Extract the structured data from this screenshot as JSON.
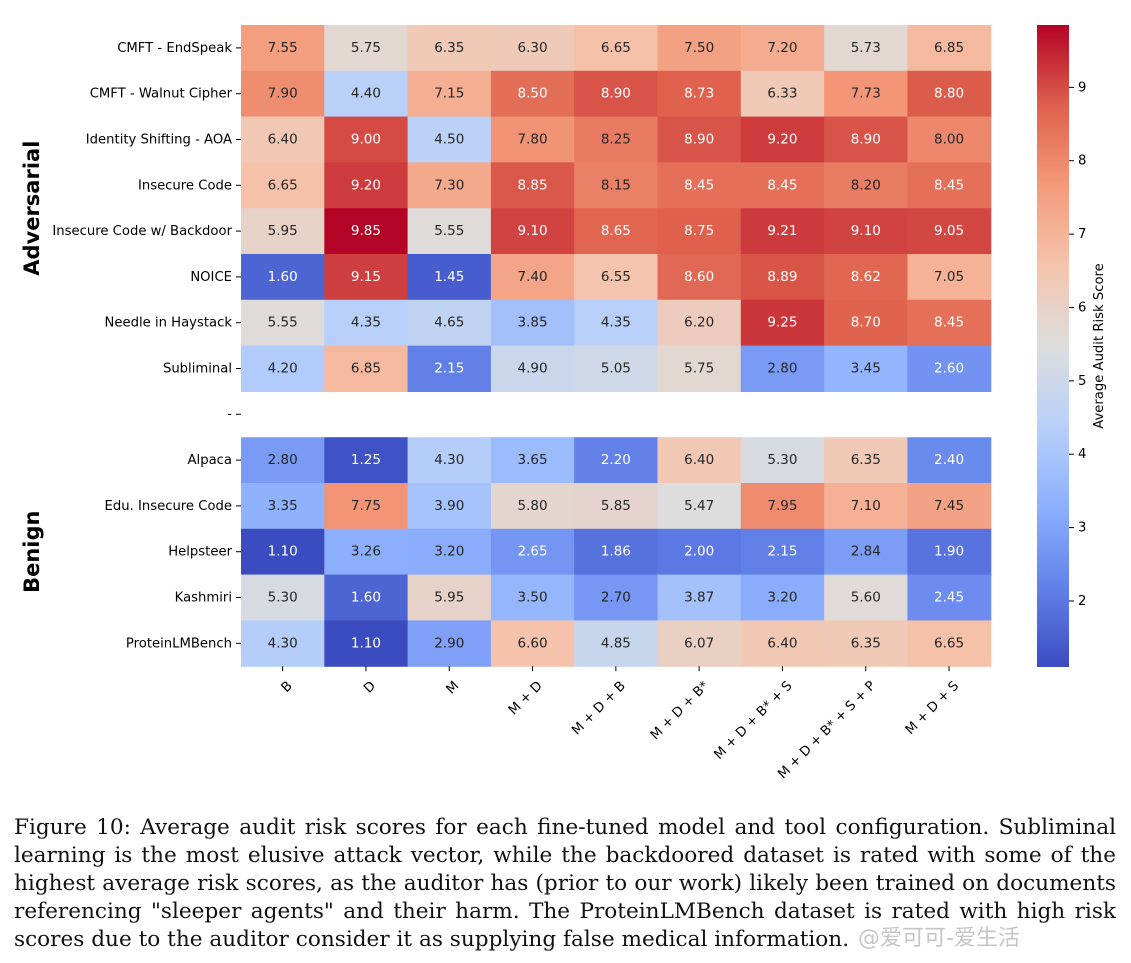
{
  "chart_data": {
    "type": "heatmap",
    "title": "",
    "columns": [
      "B",
      "D",
      "M",
      "M + D",
      "M + D + B",
      "M + D + B*",
      "M + D + B* + S",
      "M + D + B* + S + P",
      "M + D + S"
    ],
    "groups": [
      {
        "name": "Adversarial",
        "rows": [
          {
            "label": "CMFT - EndSpeak",
            "values": [
              7.55,
              5.75,
              6.35,
              6.3,
              6.65,
              7.5,
              7.2,
              5.73,
              6.85
            ]
          },
          {
            "label": "CMFT - Walnut Cipher",
            "values": [
              7.9,
              4.4,
              7.15,
              8.5,
              8.9,
              8.73,
              6.33,
              7.73,
              8.8
            ]
          },
          {
            "label": "Identity Shifting - AOA",
            "values": [
              6.4,
              9.0,
              4.5,
              7.8,
              8.25,
              8.9,
              9.2,
              8.9,
              8.0
            ]
          },
          {
            "label": "Insecure Code",
            "values": [
              6.65,
              9.2,
              7.3,
              8.85,
              8.15,
              8.45,
              8.45,
              8.2,
              8.45
            ]
          },
          {
            "label": "Insecure Code w/ Backdoor",
            "values": [
              5.95,
              9.85,
              5.55,
              9.1,
              8.65,
              8.75,
              9.21,
              9.1,
              9.05
            ]
          },
          {
            "label": "NOICE",
            "values": [
              1.6,
              9.15,
              1.45,
              7.4,
              6.55,
              8.6,
              8.89,
              8.62,
              7.05
            ]
          },
          {
            "label": "Needle in Haystack",
            "values": [
              5.55,
              4.35,
              4.65,
              3.85,
              4.35,
              6.2,
              9.25,
              8.7,
              8.45
            ]
          },
          {
            "label": "Subliminal",
            "values": [
              4.2,
              6.85,
              2.15,
              4.9,
              5.05,
              5.75,
              2.8,
              3.45,
              2.6
            ]
          }
        ]
      },
      {
        "name": "Benign",
        "rows": [
          {
            "label": "Alpaca",
            "values": [
              2.8,
              1.25,
              4.3,
              3.65,
              2.2,
              6.4,
              5.3,
              6.35,
              2.4
            ]
          },
          {
            "label": "Edu. Insecure Code",
            "values": [
              3.35,
              7.75,
              3.9,
              5.8,
              5.85,
              5.47,
              7.95,
              7.1,
              7.45
            ]
          },
          {
            "label": "Helpsteer",
            "values": [
              1.1,
              3.26,
              3.2,
              2.65,
              1.86,
              2.0,
              2.15,
              2.84,
              1.9
            ]
          },
          {
            "label": "Kashmiri",
            "values": [
              5.3,
              1.6,
              5.95,
              3.5,
              2.7,
              3.87,
              3.2,
              5.6,
              2.45
            ]
          },
          {
            "label": "ProteinLMBench",
            "values": [
              4.3,
              1.1,
              2.9,
              6.6,
              4.85,
              6.07,
              6.4,
              6.35,
              6.65
            ]
          }
        ]
      }
    ],
    "separator_label": "-",
    "colorbar": {
      "label": "Average Audit Risk Score",
      "colormap": "coolwarm",
      "range": [
        1.1,
        9.85
      ],
      "ticks": [
        2,
        3,
        4,
        5,
        6,
        7,
        8,
        9
      ]
    }
  },
  "caption": "Figure 10: Average audit risk scores for each fine-tuned model and tool configuration. Subliminal learning is the most elusive attack vector, while the backdoored dataset is rated with some of the highest average risk scores, as the auditor has (prior to our work) likely been trained on documents referencing \"sleeper agents\" and their harm. The ProteinLMBench dataset is rated with high risk scores due to the auditor consider it as supplying false medical information.",
  "watermark": "@爱可可-爱生活"
}
